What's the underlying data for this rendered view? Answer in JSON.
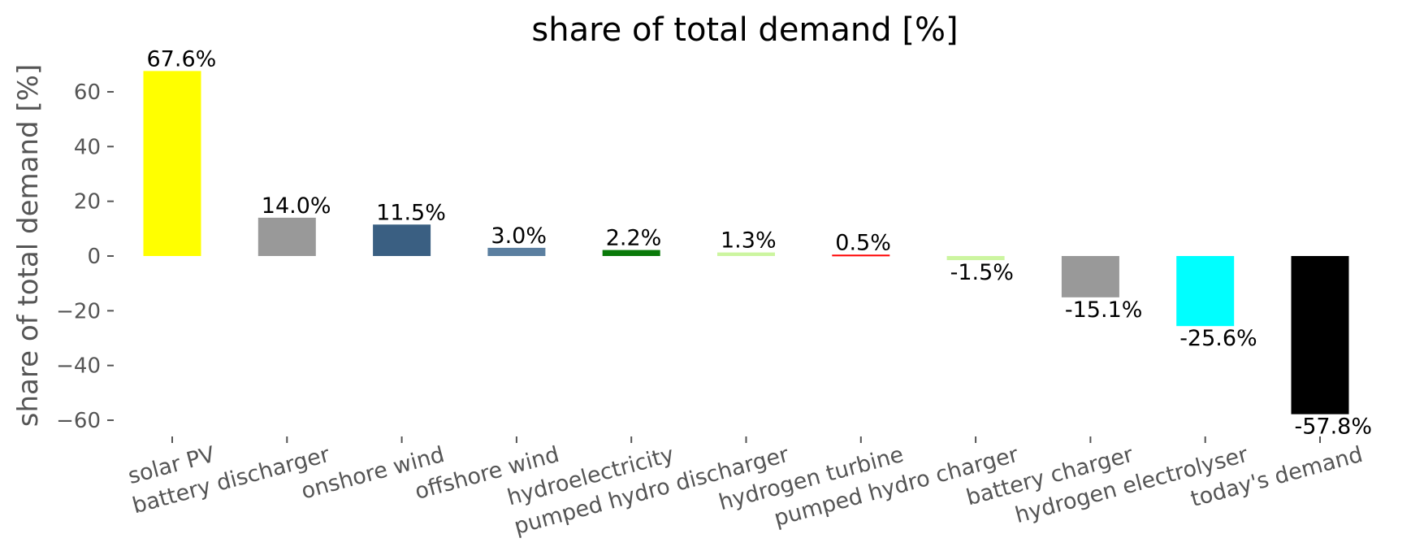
{
  "chart_data": {
    "type": "bar",
    "title": "share of total demand [%]",
    "xlabel": "",
    "ylabel": "share of total demand [%]",
    "ylim": [
      -65,
      70
    ],
    "yticks": [
      -60,
      -40,
      -20,
      0,
      20,
      40,
      60
    ],
    "ytick_labels": [
      "−60",
      "−40",
      "−20",
      "0",
      "20",
      "40",
      "60"
    ],
    "grid": false,
    "categories": [
      "solar PV",
      "battery discharger",
      "onshore wind",
      "offshore wind",
      "hydroelectricity",
      "pumped hydro discharger",
      "hydrogen turbine",
      "pumped hydro charger",
      "battery charger",
      "hydrogen electrolyser",
      "today's demand"
    ],
    "values": [
      67.6,
      14.0,
      11.5,
      3.0,
      2.2,
      1.3,
      0.5,
      -1.5,
      -15.1,
      -25.6,
      -57.8
    ],
    "data_labels": [
      "67.6%",
      "14.0%",
      "11.5%",
      "3.0%",
      "2.2%",
      "1.3%",
      "0.5%",
      "-1.5%",
      "-15.1%",
      "-25.6%",
      "-57.8%"
    ],
    "colors": [
      "#ffff00",
      "#999999",
      "#3a5f82",
      "#5b7fa0",
      "#0a7a0a",
      "#ccf5a0",
      "#ff0000",
      "#ccf5a0",
      "#999999",
      "#00ffff",
      "#000000"
    ]
  }
}
